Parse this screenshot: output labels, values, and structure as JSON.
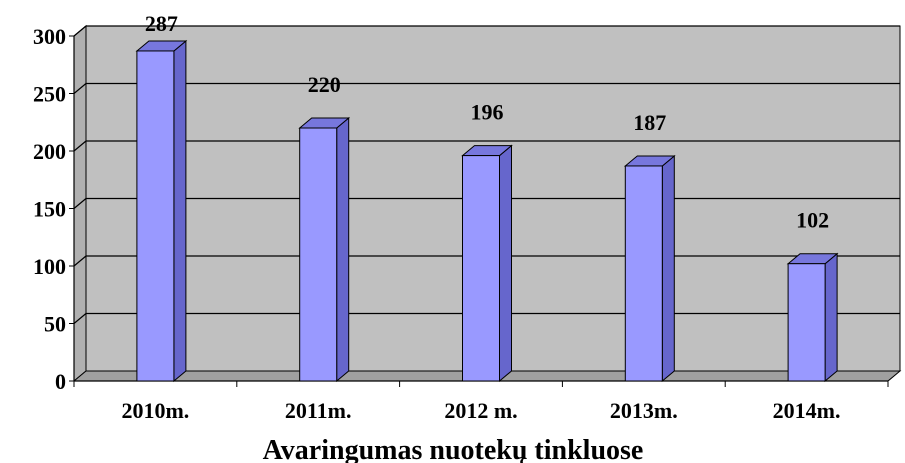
{
  "chart_data": {
    "type": "bar",
    "title": "",
    "xlabel": "Avaringumas nuotekų tinkluose",
    "ylabel": "",
    "categories": [
      "2010m.",
      "2011m.",
      "2012 m.",
      "2013m.",
      "2014m."
    ],
    "values": [
      287,
      220,
      196,
      187,
      102
    ],
    "data_labels": [
      "287",
      "220",
      "196",
      "187",
      "102"
    ],
    "y_ticks": [
      "0",
      "50",
      "100",
      "150",
      "200",
      "250",
      "300"
    ],
    "ylim": [
      0,
      300
    ],
    "grid": true,
    "legend": "none",
    "style": "3d-column",
    "colors": {
      "bar_front": "#9999ff",
      "bar_side": "#6666cc",
      "bar_top": "#7777dd",
      "plot_wall": "#c0c0c0",
      "floor": "#a0a0a0",
      "gridline": "#000000"
    }
  }
}
